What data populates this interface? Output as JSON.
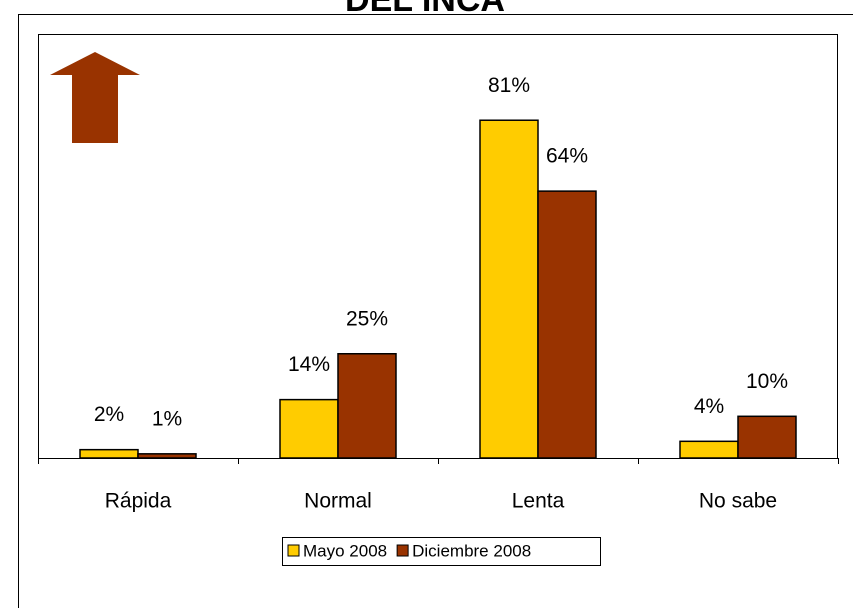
{
  "chart_data": {
    "type": "bar",
    "title": "DEL INCA",
    "categories": [
      "Rápida",
      "Normal",
      "Lenta",
      "No sabe"
    ],
    "series": [
      {
        "name": "Mayo 2008",
        "color": "#ffcc00",
        "values": [
          2,
          14,
          81,
          4
        ],
        "value_labels": [
          "2%",
          "14%",
          "81%",
          "4%"
        ]
      },
      {
        "name": "Diciembre 2008",
        "color": "#993300",
        "values": [
          1,
          25,
          64,
          10
        ],
        "value_labels": [
          "1%",
          "25%",
          "64%",
          "10%"
        ]
      }
    ],
    "legend": "bottom"
  }
}
